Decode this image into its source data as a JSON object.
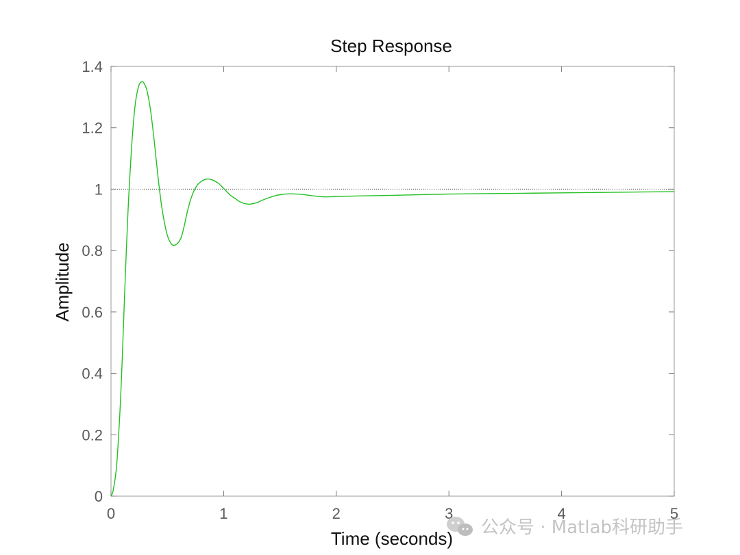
{
  "chart_data": {
    "type": "line",
    "title": "Step Response",
    "xlabel": "Time (seconds)",
    "ylabel": "Amplitude",
    "xlim": [
      0,
      5
    ],
    "ylim": [
      0,
      1.4
    ],
    "x_ticks": [
      "0",
      "1",
      "2",
      "3",
      "4",
      "5"
    ],
    "y_ticks": [
      "0",
      "0.2",
      "0.4",
      "0.6",
      "0.8",
      "1",
      "1.2",
      "1.4"
    ],
    "grid": false,
    "reference_line": {
      "y": 1,
      "style": "dotted"
    },
    "series": [
      {
        "color": "#22c022",
        "x": [
          0,
          0.02,
          0.05,
          0.08,
          0.1,
          0.12,
          0.15,
          0.18,
          0.2,
          0.22,
          0.25,
          0.28,
          0.3,
          0.32,
          0.35,
          0.38,
          0.4,
          0.43,
          0.46,
          0.5,
          0.54,
          0.58,
          0.62,
          0.65,
          0.68,
          0.72,
          0.76,
          0.8,
          0.85,
          0.9,
          0.95,
          0.98,
          1.02,
          1.06,
          1.1,
          1.15,
          1.2,
          1.25,
          1.3,
          1.35,
          1.4,
          1.45,
          1.5,
          1.55,
          1.6,
          1.65,
          1.7,
          1.8,
          1.9,
          2.0,
          2.2,
          2.5,
          3.0,
          3.5,
          4.0,
          4.5,
          5.0
        ],
        "y": [
          0,
          0.02,
          0.1,
          0.28,
          0.45,
          0.65,
          0.92,
          1.12,
          1.22,
          1.29,
          1.34,
          1.35,
          1.34,
          1.32,
          1.26,
          1.17,
          1.1,
          1.0,
          0.92,
          0.85,
          0.82,
          0.82,
          0.84,
          0.88,
          0.93,
          0.98,
          1.01,
          1.025,
          1.033,
          1.03,
          1.02,
          1.01,
          0.995,
          0.98,
          0.97,
          0.958,
          0.952,
          0.952,
          0.957,
          0.965,
          0.972,
          0.978,
          0.982,
          0.984,
          0.985,
          0.984,
          0.983,
          0.978,
          0.975,
          0.976,
          0.978,
          0.98,
          0.984,
          0.986,
          0.988,
          0.99,
          0.992
        ]
      }
    ]
  },
  "watermark": {
    "icon": "wechat-icon",
    "text": "公众号 · Matlab科研助手"
  }
}
